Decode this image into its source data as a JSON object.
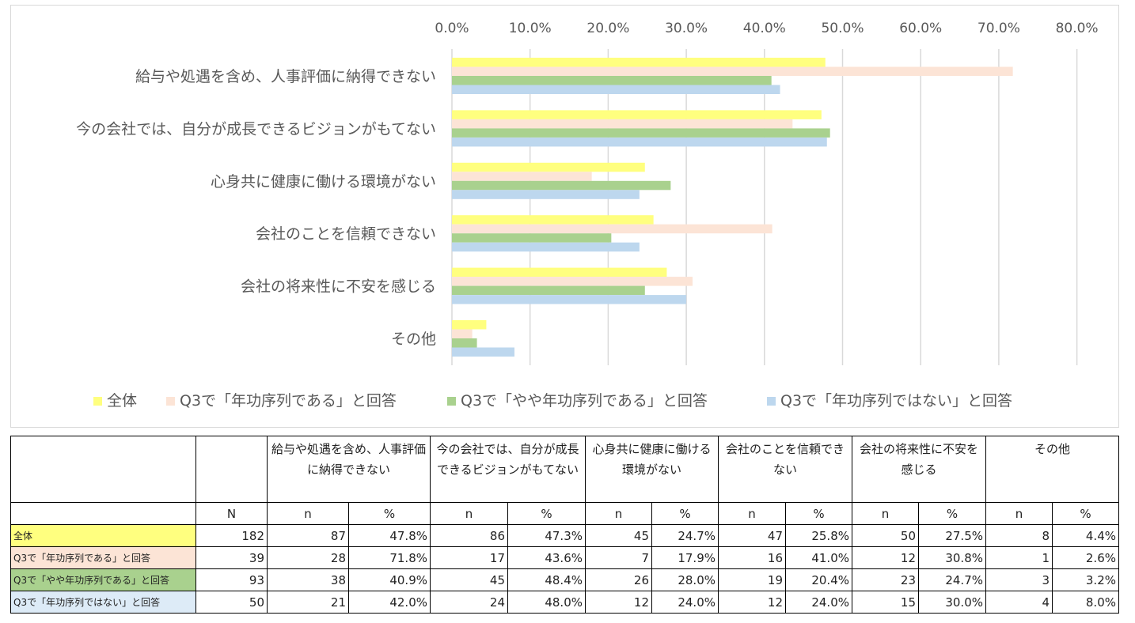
{
  "chart_data": {
    "type": "bar",
    "orientation": "horizontal",
    "categories": [
      "給与や処遇を含め、人事評価に納得できない",
      "今の会社では、自分が成長できるビジョンがもてない",
      "心身共に健康に働ける環境がない",
      "会社のことを信頼できない",
      "会社の将来性に不安を感じる",
      "その他"
    ],
    "series": [
      {
        "name": "全体",
        "color": "#ffff7f",
        "values": [
          47.8,
          47.3,
          24.7,
          25.8,
          27.5,
          4.4
        ]
      },
      {
        "name": "Q3で「年功序列である」と回答",
        "color": "#fce4d6",
        "values": [
          71.8,
          43.6,
          17.9,
          41.0,
          30.8,
          2.6
        ]
      },
      {
        "name": "Q3で「やや年功序列である」と回答",
        "color": "#a9d18e",
        "values": [
          40.9,
          48.4,
          28.0,
          20.4,
          24.7,
          3.2
        ]
      },
      {
        "name": "Q3で「年功序列ではない」と回答",
        "color": "#bdd7ee",
        "values": [
          42.0,
          48.0,
          24.0,
          24.0,
          30.0,
          8.0
        ]
      }
    ],
    "xlim": [
      0,
      80
    ],
    "ticks": [
      "0.0%",
      "10.0%",
      "20.0%",
      "30.0%",
      "40.0%",
      "50.0%",
      "60.0%",
      "70.0%",
      "80.0%"
    ],
    "axis_position": "top",
    "grid": true,
    "legend_position": "bottom"
  },
  "table": {
    "header_groups": [
      "給与や処遇を含め、人事評価に納得できない",
      "今の会社では、自分が成長できるビジョンがもてない",
      "心身共に健康に働ける環境がない",
      "会社のことを信頼できない",
      "会社の将来性に不安を感じる",
      "その他"
    ],
    "sub_header": {
      "N": "N",
      "n": "n",
      "pct": "%"
    },
    "rows": [
      {
        "label": "全体",
        "color": "#ffff7f",
        "N": "182",
        "cells": [
          "87",
          "47.8%",
          "86",
          "47.3%",
          "45",
          "24.7%",
          "47",
          "25.8%",
          "50",
          "27.5%",
          "8",
          "4.4%"
        ]
      },
      {
        "label": "Q3で「年功序列である」と回答",
        "color": "#fce4d6",
        "N": "39",
        "cells": [
          "28",
          "71.8%",
          "17",
          "43.6%",
          "7",
          "17.9%",
          "16",
          "41.0%",
          "12",
          "30.8%",
          "1",
          "2.6%"
        ]
      },
      {
        "label": "Q3で「やや年功序列である」と回答",
        "color": "#a9d18e",
        "N": "93",
        "cells": [
          "38",
          "40.9%",
          "45",
          "48.4%",
          "26",
          "28.0%",
          "19",
          "20.4%",
          "23",
          "24.7%",
          "3",
          "3.2%"
        ]
      },
      {
        "label": "Q3で「年功序列ではない」と回答",
        "color": "#ddebf7",
        "N": "50",
        "cells": [
          "21",
          "42.0%",
          "24",
          "48.0%",
          "12",
          "24.0%",
          "12",
          "24.0%",
          "15",
          "30.0%",
          "4",
          "8.0%"
        ]
      }
    ]
  }
}
